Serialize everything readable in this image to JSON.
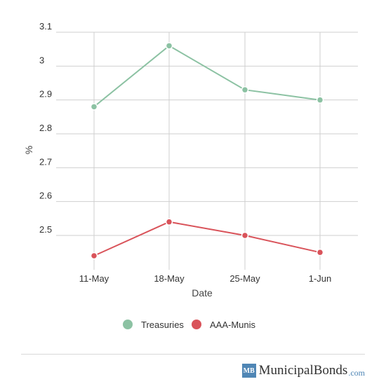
{
  "chart_data": {
    "type": "line",
    "title": "",
    "xlabel": "Date",
    "ylabel": "%",
    "categories": [
      "11-May",
      "18-May",
      "25-May",
      "1-Jun"
    ],
    "y_ticks": [
      "2.5",
      "2.6",
      "2.7",
      "2.8",
      "2.9",
      "3",
      "3.1"
    ],
    "ylim": [
      2.4,
      3.1
    ],
    "grid": true,
    "legend_position": "bottom",
    "series": [
      {
        "name": "Treasuries",
        "color": "#8cc2a3",
        "values": [
          2.88,
          3.06,
          2.93,
          2.9
        ]
      },
      {
        "name": "AAA-Munis",
        "color": "#d9535a",
        "values": [
          2.44,
          2.54,
          2.5,
          2.45
        ]
      }
    ]
  },
  "brand": {
    "badge": "MB",
    "name": "MunicipalBonds",
    "tld": ".com",
    "color": "#4f86b5"
  }
}
